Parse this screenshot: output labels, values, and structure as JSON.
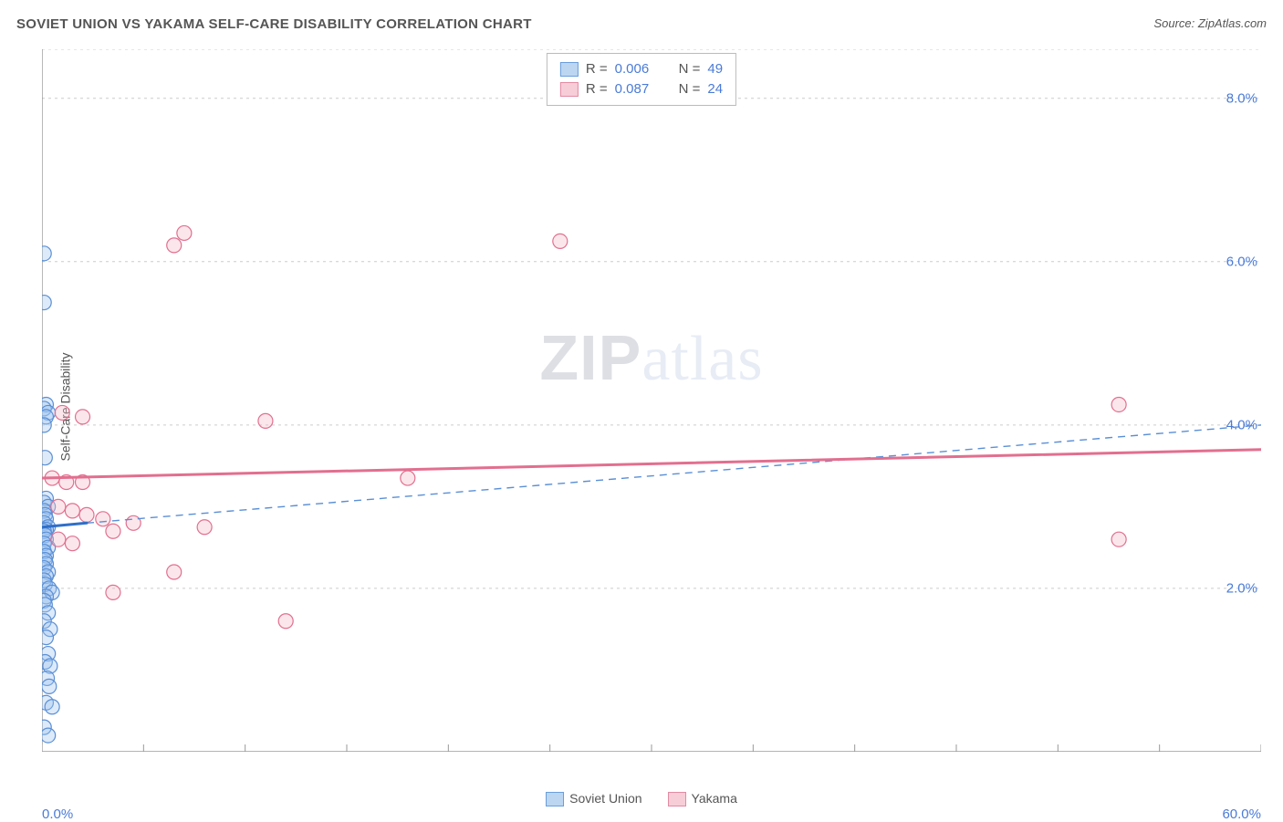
{
  "title": "SOVIET UNION VS YAKAMA SELF-CARE DISABILITY CORRELATION CHART",
  "source_label": "Source: ZipAtlas.com",
  "ylabel": "Self-Care Disability",
  "watermark_prefix": "ZIP",
  "watermark_suffix": "atlas",
  "chart": {
    "type": "scatter",
    "background_color": "#ffffff",
    "axis_color": "#888888",
    "grid_color": "#cccccc",
    "grid_dash": "3,4",
    "tick_color": "#999999",
    "tick_label_color": "#4a7bd8",
    "tick_fontsize": 15,
    "title_fontsize": 15,
    "title_color": "#555555",
    "ylabel_fontsize": 14,
    "ylabel_color": "#555555",
    "xlim": [
      0.0,
      60.0
    ],
    "ylim": [
      0.0,
      8.6
    ],
    "x_tick_positions": [
      0,
      5,
      10,
      15,
      20,
      25,
      30,
      35,
      40,
      45,
      50,
      55,
      60
    ],
    "x_tick_labels_shown": {
      "0": "0.0%",
      "60": "60.0%"
    },
    "y_gridlines": [
      2.0,
      4.0,
      6.0,
      8.0,
      8.6
    ],
    "y_tick_labels": {
      "2.0": "2.0%",
      "4.0": "4.0%",
      "6.0": "6.0%",
      "8.0": "8.0%"
    },
    "marker_radius": 8,
    "marker_stroke_width": 1.2,
    "marker_fill_opacity": 0.35,
    "trend_pink_width": 3,
    "trend_blue_solid_width": 3,
    "trend_blue_dash_width": 1.4,
    "trend_blue_dash_pattern": "8,6"
  },
  "series": [
    {
      "name": "Soviet Union",
      "fill_color": "#9dc3ef",
      "stroke_color": "#5a8fd6",
      "legend_swatch_fill": "#bcd6f2",
      "legend_swatch_stroke": "#6a9edb",
      "R_label": "R = ",
      "R_value": "0.006",
      "N_label": "N = ",
      "N_value": "49",
      "trend_solid": {
        "x1": 0.0,
        "y1": 2.75,
        "x2": 2.2,
        "y2": 2.8
      },
      "trend_dash": {
        "x1": 2.2,
        "y1": 2.8,
        "x2": 60.0,
        "y2": 4.0
      },
      "points": [
        [
          0.1,
          6.1
        ],
        [
          0.1,
          5.5
        ],
        [
          0.2,
          4.25
        ],
        [
          0.1,
          4.2
        ],
        [
          0.3,
          4.15
        ],
        [
          0.2,
          4.1
        ],
        [
          0.1,
          4.0
        ],
        [
          0.15,
          3.6
        ],
        [
          0.2,
          3.1
        ],
        [
          0.1,
          3.05
        ],
        [
          0.3,
          3.0
        ],
        [
          0.1,
          2.95
        ],
        [
          0.15,
          2.9
        ],
        [
          0.2,
          2.85
        ],
        [
          0.1,
          2.8
        ],
        [
          0.3,
          2.75
        ],
        [
          0.2,
          2.72
        ],
        [
          0.1,
          2.7
        ],
        [
          0.15,
          2.65
        ],
        [
          0.2,
          2.6
        ],
        [
          0.1,
          2.55
        ],
        [
          0.3,
          2.5
        ],
        [
          0.1,
          2.45
        ],
        [
          0.2,
          2.4
        ],
        [
          0.15,
          2.35
        ],
        [
          0.2,
          2.3
        ],
        [
          0.1,
          2.25
        ],
        [
          0.3,
          2.2
        ],
        [
          0.2,
          2.15
        ],
        [
          0.1,
          2.1
        ],
        [
          0.15,
          2.05
        ],
        [
          0.35,
          2.0
        ],
        [
          0.5,
          1.95
        ],
        [
          0.2,
          1.9
        ],
        [
          0.1,
          1.85
        ],
        [
          0.15,
          1.8
        ],
        [
          0.3,
          1.7
        ],
        [
          0.1,
          1.6
        ],
        [
          0.4,
          1.5
        ],
        [
          0.2,
          1.4
        ],
        [
          0.3,
          1.2
        ],
        [
          0.15,
          1.1
        ],
        [
          0.4,
          1.05
        ],
        [
          0.25,
          0.9
        ],
        [
          0.35,
          0.8
        ],
        [
          0.2,
          0.6
        ],
        [
          0.5,
          0.55
        ],
        [
          0.1,
          0.3
        ],
        [
          0.3,
          0.2
        ]
      ]
    },
    {
      "name": "Yakama",
      "fill_color": "#f4b9c7",
      "stroke_color": "#e26f8f",
      "legend_swatch_fill": "#f7cdd8",
      "legend_swatch_stroke": "#e38aa2",
      "R_label": "R = ",
      "R_value": "0.087",
      "N_label": "N = ",
      "N_value": "24",
      "trend_solid": {
        "x1": 0.0,
        "y1": 3.35,
        "x2": 60.0,
        "y2": 3.7
      },
      "points": [
        [
          7.0,
          6.35
        ],
        [
          6.5,
          6.2
        ],
        [
          25.5,
          6.25
        ],
        [
          53.0,
          4.25
        ],
        [
          1.0,
          4.15
        ],
        [
          2.0,
          4.1
        ],
        [
          11.0,
          4.05
        ],
        [
          0.5,
          3.35
        ],
        [
          1.2,
          3.3
        ],
        [
          2.0,
          3.3
        ],
        [
          18.0,
          3.35
        ],
        [
          0.8,
          3.0
        ],
        [
          1.5,
          2.95
        ],
        [
          2.2,
          2.9
        ],
        [
          3.0,
          2.85
        ],
        [
          4.5,
          2.8
        ],
        [
          8.0,
          2.75
        ],
        [
          3.5,
          2.7
        ],
        [
          53.0,
          2.6
        ],
        [
          6.5,
          2.2
        ],
        [
          3.5,
          1.95
        ],
        [
          12.0,
          1.6
        ],
        [
          0.8,
          2.6
        ],
        [
          1.5,
          2.55
        ]
      ]
    }
  ],
  "bottom_legend": [
    {
      "label": "Soviet Union",
      "fill": "#bcd6f2",
      "stroke": "#6a9edb"
    },
    {
      "label": "Yakama",
      "fill": "#f7cdd8",
      "stroke": "#e38aa2"
    }
  ]
}
